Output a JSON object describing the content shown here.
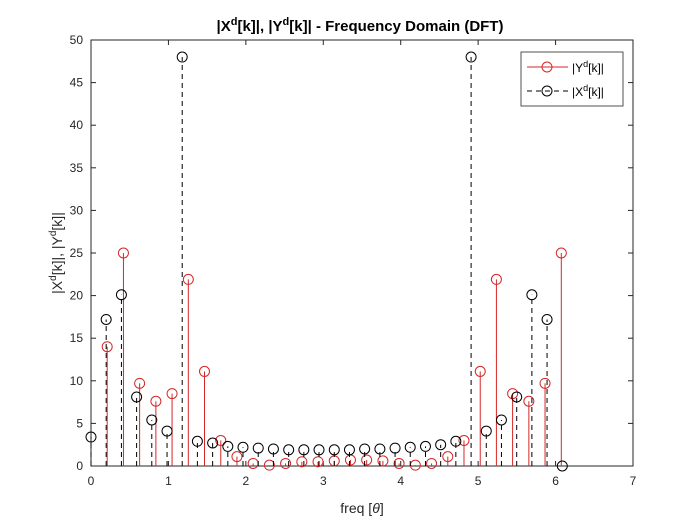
{
  "chart_data": {
    "type": "stem",
    "title": "|X^d[k]|, |Y^d[k]| - Frequency Domain (DFT)",
    "xlabel": "freq [θ]",
    "ylabel": "|X^d[k]|, |Y^d[k]|",
    "xlim": [
      0,
      7
    ],
    "ylim": [
      0,
      50
    ],
    "xticks": [
      "0",
      "1",
      "2",
      "3",
      "4",
      "5",
      "6",
      "7"
    ],
    "yticks": [
      "0",
      "5",
      "10",
      "15",
      "20",
      "25",
      "30",
      "35",
      "40",
      "45",
      "50"
    ],
    "grid": false,
    "legend_position": "top-right",
    "series": [
      {
        "name": "|Y^d[k]|",
        "color": "#d62728",
        "line_style": "solid",
        "marker": "circle",
        "x": [
          0.209,
          0.419,
          0.628,
          0.838,
          1.047,
          1.257,
          1.466,
          1.676,
          1.885,
          2.094,
          2.304,
          2.513,
          2.723,
          2.932,
          3.142,
          3.351,
          3.56,
          3.77,
          3.979,
          4.189,
          4.398,
          4.608,
          4.817,
          5.027,
          5.236,
          5.445,
          5.655,
          5.864,
          6.074
        ],
        "y": [
          14.0,
          25.0,
          9.7,
          7.6,
          8.5,
          21.9,
          11.1,
          3.0,
          1.1,
          0.3,
          0.1,
          0.3,
          0.5,
          0.5,
          0.6,
          0.7,
          0.7,
          0.6,
          0.3,
          0.1,
          0.3,
          1.1,
          3.0,
          11.1,
          21.9,
          8.5,
          7.6,
          9.7,
          25.0
        ]
      },
      {
        "name": "|X^d[k]|",
        "color": "#000000",
        "line_style": "dashed",
        "marker": "circle",
        "x": [
          0.0,
          0.196,
          0.393,
          0.589,
          0.785,
          0.982,
          1.178,
          1.374,
          1.571,
          1.767,
          1.963,
          2.16,
          2.356,
          2.553,
          2.749,
          2.945,
          3.142,
          3.338,
          3.534,
          3.731,
          3.927,
          4.123,
          4.32,
          4.516,
          4.712,
          4.909,
          5.105,
          5.301,
          5.498,
          5.694,
          5.89,
          6.087
        ],
        "y": [
          3.4,
          17.2,
          20.1,
          8.1,
          5.4,
          4.1,
          48.0,
          2.9,
          2.7,
          2.3,
          2.2,
          2.1,
          2.0,
          1.9,
          1.9,
          1.9,
          1.9,
          1.9,
          2.0,
          2.0,
          2.1,
          2.2,
          2.3,
          2.5,
          2.9,
          48.0,
          4.1,
          5.4,
          8.1,
          20.1,
          17.2,
          0
        ]
      }
    ]
  },
  "title": {
    "part1": "|X",
    "sup1": "d",
    "part2": "[k]|, |Y",
    "sup2": "d",
    "part3": "[k]| - Frequency Domain (DFT)"
  },
  "xlabel": {
    "text": "freq [",
    "theta": "θ",
    "close": "]"
  },
  "ylabel": {
    "part1": "|X",
    "sup1": "d",
    "part2": "[k]|, |Y",
    "sup2": "d",
    "part3": "[k]|"
  },
  "legend": {
    "entry1": {
      "pre": "|Y",
      "sup": "d",
      "post": "[k]|"
    },
    "entry2": {
      "pre": "|X",
      "sup": "d",
      "post": "[k]|"
    }
  }
}
